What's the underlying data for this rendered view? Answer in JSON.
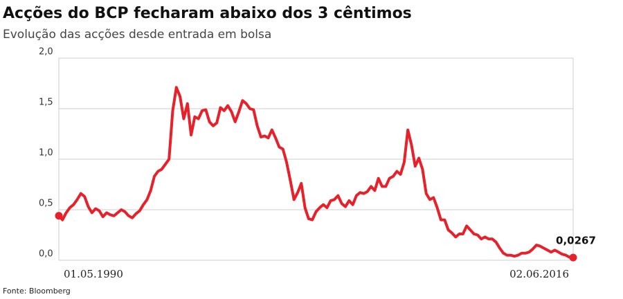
{
  "chart_data": {
    "type": "line",
    "title": "Acções do BCP fecharam abaixo dos 3 cêntimos",
    "subtitle": "Evolução das acções desde entrada em bolsa",
    "source": "Fonte: Bloomberg",
    "categories": [
      "01.05.1990",
      null,
      null,
      null,
      null,
      null,
      null,
      null,
      null,
      null,
      null,
      null,
      null,
      null,
      null,
      null,
      null,
      null,
      null,
      null,
      null,
      null,
      null,
      null,
      null,
      null,
      null,
      null,
      null,
      null,
      null,
      null,
      null,
      null,
      null,
      null,
      null,
      null,
      null,
      null,
      null,
      null,
      null,
      null,
      null,
      null,
      null,
      null,
      null,
      null,
      null,
      null,
      null,
      null,
      null,
      null,
      null,
      null,
      null,
      null,
      null,
      null,
      null,
      null,
      null,
      null,
      null,
      null,
      null,
      null,
      null,
      null,
      null,
      null,
      null,
      null,
      null,
      null,
      null,
      null,
      null,
      null,
      null,
      null,
      null,
      null,
      null,
      null,
      null,
      null,
      null,
      null,
      null,
      null,
      null,
      null,
      null,
      null,
      null,
      null,
      null,
      null,
      null,
      null,
      null,
      null,
      null,
      null,
      null,
      null,
      null,
      null,
      null,
      null,
      null,
      null,
      null,
      null,
      null,
      null,
      null,
      null,
      null,
      null,
      null,
      null,
      null,
      null,
      null,
      null,
      null,
      null,
      null,
      null,
      null,
      null,
      null,
      null,
      null,
      null,
      "02.06.2016"
    ],
    "values": [
      0.44,
      0.4,
      0.47,
      0.52,
      0.55,
      0.6,
      0.66,
      0.63,
      0.53,
      0.47,
      0.51,
      0.49,
      0.43,
      0.47,
      0.45,
      0.44,
      0.47,
      0.5,
      0.48,
      0.44,
      0.42,
      0.46,
      0.49,
      0.55,
      0.6,
      0.69,
      0.83,
      0.88,
      0.9,
      0.95,
      1.0,
      1.48,
      1.71,
      1.62,
      1.4,
      1.55,
      1.24,
      1.42,
      1.4,
      1.48,
      1.49,
      1.37,
      1.33,
      1.36,
      1.51,
      1.48,
      1.53,
      1.47,
      1.37,
      1.47,
      1.58,
      1.55,
      1.5,
      1.49,
      1.33,
      1.22,
      1.23,
      1.21,
      1.29,
      1.21,
      1.12,
      1.1,
      0.97,
      0.79,
      0.6,
      0.67,
      0.76,
      0.52,
      0.41,
      0.4,
      0.48,
      0.52,
      0.55,
      0.52,
      0.59,
      0.6,
      0.64,
      0.56,
      0.53,
      0.59,
      0.55,
      0.64,
      0.67,
      0.66,
      0.68,
      0.73,
      0.69,
      0.81,
      0.73,
      0.73,
      0.81,
      0.83,
      0.88,
      0.85,
      0.97,
      1.29,
      1.14,
      0.93,
      1.01,
      0.9,
      0.66,
      0.6,
      0.62,
      0.52,
      0.4,
      0.4,
      0.3,
      0.27,
      0.23,
      0.26,
      0.26,
      0.34,
      0.3,
      0.26,
      0.25,
      0.21,
      0.23,
      0.21,
      0.21,
      0.18,
      0.12,
      0.07,
      0.05,
      0.05,
      0.04,
      0.05,
      0.07,
      0.07,
      0.08,
      0.11,
      0.15,
      0.14,
      0.12,
      0.1,
      0.08,
      0.1,
      0.08,
      0.06,
      0.05,
      0.03,
      0.0267
    ],
    "value_labels": [
      null,
      null,
      null,
      null,
      null,
      null,
      null,
      null,
      null,
      null,
      null,
      null,
      null,
      null,
      null,
      null,
      null,
      null,
      null,
      null,
      null,
      null,
      null,
      null,
      null,
      null,
      null,
      null,
      null,
      null,
      null,
      null,
      null,
      null,
      null,
      null,
      null,
      null,
      null,
      null,
      null,
      null,
      null,
      null,
      null,
      null,
      null,
      null,
      null,
      null,
      null,
      null,
      null,
      null,
      null,
      null,
      null,
      null,
      null,
      null,
      null,
      null,
      null,
      null,
      null,
      null,
      null,
      null,
      null,
      null,
      null,
      null,
      null,
      null,
      null,
      null,
      null,
      null,
      null,
      null,
      null,
      null,
      null,
      null,
      null,
      null,
      null,
      null,
      null,
      null,
      null,
      null,
      null,
      null,
      null,
      null,
      null,
      null,
      null,
      null,
      null,
      null,
      null,
      null,
      null,
      null,
      null,
      null,
      null,
      null,
      null,
      null,
      null,
      null,
      null,
      null,
      null,
      null,
      null,
      null,
      null,
      null,
      null,
      null,
      null,
      null,
      null,
      null,
      null,
      null,
      null,
      null,
      null,
      null,
      null,
      null,
      null,
      null,
      null,
      null,
      "0,0267"
    ],
    "color": "#e8202a",
    "ylim": [
      0,
      2
    ],
    "yticks": [
      {
        "value": 0,
        "label": "0,0"
      },
      {
        "value": 0.5,
        "label": "0,5"
      },
      {
        "value": 1,
        "label": "1,0"
      },
      {
        "value": 1.5,
        "label": "1,5"
      },
      {
        "value": 2,
        "label": "2,0"
      }
    ],
    "grid": true
  }
}
